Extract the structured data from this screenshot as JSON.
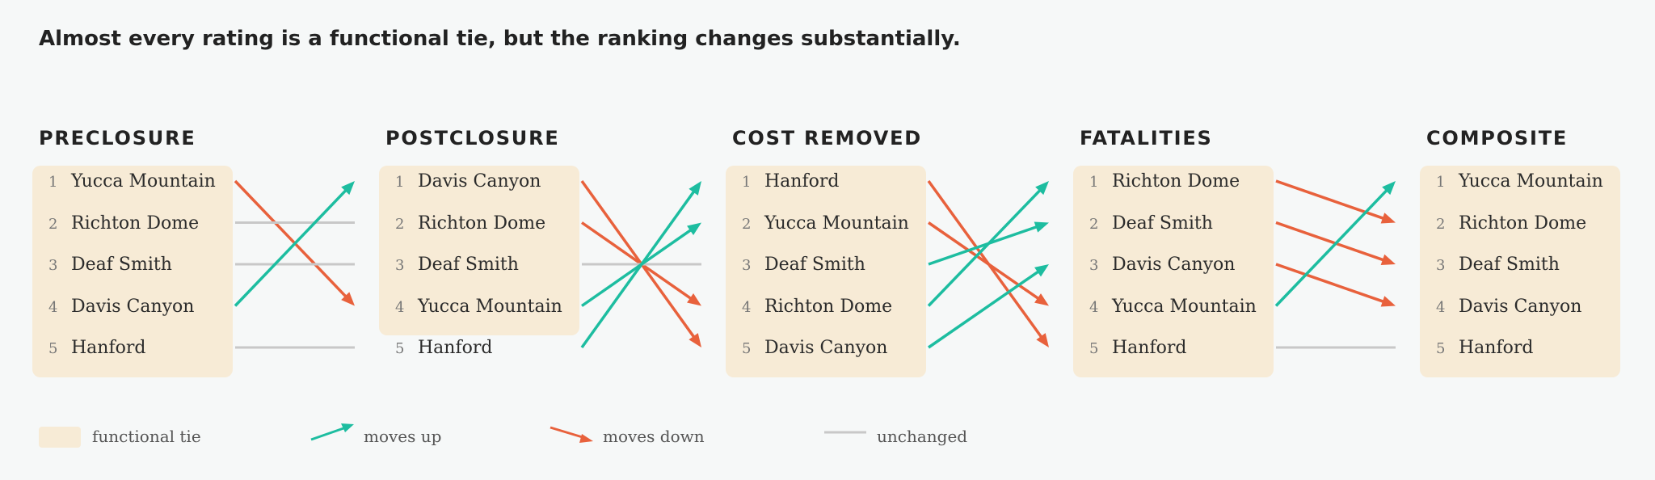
{
  "headline": "Almost every rating is a functional tie, but the ranking changes substantially.",
  "colors": {
    "tie": "#f7ebd6",
    "up": "#1dbda0",
    "down": "#e8613c",
    "same": "#c8c8c8"
  },
  "columns": [
    {
      "title": "PRECLOSURE",
      "tie_ranks": [
        1,
        5
      ],
      "ranks": [
        {
          "num": "1",
          "name": "Yucca Mountain"
        },
        {
          "num": "2",
          "name": "Richton Dome"
        },
        {
          "num": "3",
          "name": "Deaf Smith"
        },
        {
          "num": "4",
          "name": "Davis Canyon"
        },
        {
          "num": "5",
          "name": "Hanford"
        }
      ]
    },
    {
      "title": "POSTCLOSURE",
      "tie_ranks": [
        1,
        4
      ],
      "ranks": [
        {
          "num": "1",
          "name": "Davis Canyon"
        },
        {
          "num": "2",
          "name": "Richton Dome"
        },
        {
          "num": "3",
          "name": "Deaf Smith"
        },
        {
          "num": "4",
          "name": "Yucca Mountain"
        },
        {
          "num": "5",
          "name": "Hanford"
        }
      ]
    },
    {
      "title": "COST REMOVED",
      "tie_ranks": [
        1,
        5
      ],
      "ranks": [
        {
          "num": "1",
          "name": "Hanford"
        },
        {
          "num": "2",
          "name": "Yucca Mountain"
        },
        {
          "num": "3",
          "name": "Deaf Smith"
        },
        {
          "num": "4",
          "name": "Richton Dome"
        },
        {
          "num": "5",
          "name": "Davis Canyon"
        }
      ]
    },
    {
      "title": "FATALITIES",
      "tie_ranks": [
        1,
        5
      ],
      "ranks": [
        {
          "num": "1",
          "name": "Richton Dome"
        },
        {
          "num": "2",
          "name": "Deaf Smith"
        },
        {
          "num": "3",
          "name": "Davis Canyon"
        },
        {
          "num": "4",
          "name": "Yucca Mountain"
        },
        {
          "num": "5",
          "name": "Hanford"
        }
      ]
    },
    {
      "title": "COMPOSITE",
      "tie_ranks": [
        1,
        5
      ],
      "ranks": [
        {
          "num": "1",
          "name": "Yucca Mountain"
        },
        {
          "num": "2",
          "name": "Richton Dome"
        },
        {
          "num": "3",
          "name": "Deaf Smith"
        },
        {
          "num": "4",
          "name": "Davis Canyon"
        },
        {
          "num": "5",
          "name": "Hanford"
        }
      ]
    }
  ],
  "legend": {
    "tie_label": "functional tie",
    "up_label": "moves up",
    "down_label": "moves down",
    "same_label": "unchanged"
  }
}
